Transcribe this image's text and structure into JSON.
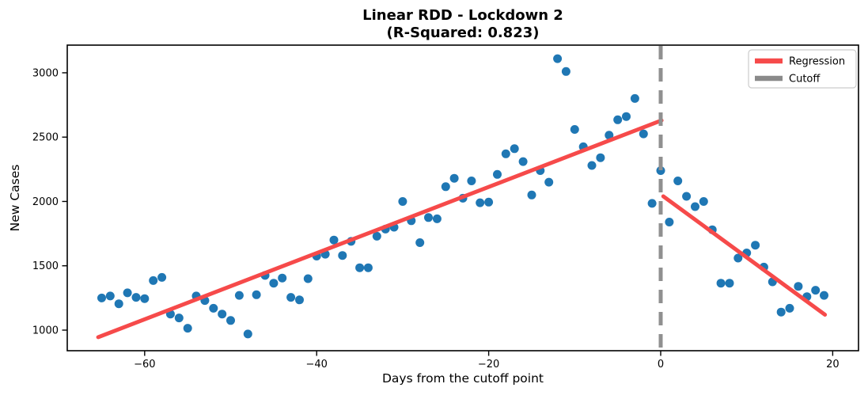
{
  "title": {
    "line1": "Linear RDD - Lockdown 2",
    "line2": "(R-Squared: 0.823)"
  },
  "chart_data": {
    "type": "scatter",
    "title": "Linear RDD - Lockdown 2 (R-Squared: 0.823)",
    "r_squared": 0.823,
    "xlabel": "Days from the cutoff point",
    "ylabel": "New Cases",
    "xlim": [
      -69,
      23
    ],
    "ylim": [
      840,
      3215
    ],
    "grid": false,
    "legend_position": "top-right",
    "xticks": {
      "values": [
        -60,
        -40,
        -20,
        0,
        20
      ],
      "labels": [
        "−60",
        "−40",
        "−20",
        "0",
        "20"
      ]
    },
    "yticks": {
      "values": [
        1000,
        1500,
        2000,
        2500,
        3000
      ],
      "labels": [
        "1000",
        "1500",
        "2000",
        "2500",
        "3000"
      ]
    },
    "legend": [
      {
        "label": "Regression",
        "color": "#f64a4a",
        "style": "solid"
      },
      {
        "label": "Cutoff",
        "color": "#8a8a8a",
        "style": "dashed"
      }
    ],
    "colors": {
      "points": "#1f77b4",
      "regression": "#f64a4a",
      "cutoff": "#909090",
      "spine": "#000000"
    },
    "series": [
      {
        "name": "observations",
        "type": "scatter",
        "color": "#1f77b4",
        "points": [
          [
            -65,
            1250
          ],
          [
            -64,
            1265
          ],
          [
            -63,
            1205
          ],
          [
            -62,
            1290
          ],
          [
            -61,
            1255
          ],
          [
            -60,
            1245
          ],
          [
            -59,
            1385
          ],
          [
            -58,
            1410
          ],
          [
            -57,
            1125
          ],
          [
            -56,
            1095
          ],
          [
            -55,
            1015
          ],
          [
            -54,
            1265
          ],
          [
            -53,
            1230
          ],
          [
            -52,
            1170
          ],
          [
            -51,
            1125
          ],
          [
            -50,
            1075
          ],
          [
            -49,
            1270
          ],
          [
            -48,
            970
          ],
          [
            -47,
            1275
          ],
          [
            -46,
            1425
          ],
          [
            -45,
            1365
          ],
          [
            -44,
            1405
          ],
          [
            -43,
            1255
          ],
          [
            -42,
            1235
          ],
          [
            -41,
            1400
          ],
          [
            -40,
            1575
          ],
          [
            -39,
            1590
          ],
          [
            -38,
            1700
          ],
          [
            -37,
            1580
          ],
          [
            -36,
            1690
          ],
          [
            -35,
            1485
          ],
          [
            -34,
            1485
          ],
          [
            -33,
            1730
          ],
          [
            -32,
            1785
          ],
          [
            -31,
            1800
          ],
          [
            -30,
            2000
          ],
          [
            -29,
            1850
          ],
          [
            -28,
            1680
          ],
          [
            -27,
            1875
          ],
          [
            -26,
            1865
          ],
          [
            -25,
            2115
          ],
          [
            -24,
            2180
          ],
          [
            -23,
            2025
          ],
          [
            -22,
            2160
          ],
          [
            -21,
            1990
          ],
          [
            -20,
            1995
          ],
          [
            -19,
            2210
          ],
          [
            -18,
            2370
          ],
          [
            -17,
            2410
          ],
          [
            -16,
            2310
          ],
          [
            -15,
            2050
          ],
          [
            -14,
            2240
          ],
          [
            -13,
            2150
          ],
          [
            -12,
            3110
          ],
          [
            -11,
            3010
          ],
          [
            -10,
            2560
          ],
          [
            -9,
            2425
          ],
          [
            -8,
            2280
          ],
          [
            -7,
            2340
          ],
          [
            -6,
            2515
          ],
          [
            -5,
            2635
          ],
          [
            -4,
            2660
          ],
          [
            -3,
            2800
          ],
          [
            -2,
            2525
          ],
          [
            -1,
            1985
          ],
          [
            0,
            2240
          ],
          [
            1,
            1840
          ],
          [
            2,
            2160
          ],
          [
            3,
            2040
          ],
          [
            4,
            1960
          ],
          [
            5,
            2000
          ],
          [
            6,
            1780
          ],
          [
            7,
            1365
          ],
          [
            8,
            1365
          ],
          [
            9,
            1560
          ],
          [
            10,
            1600
          ],
          [
            11,
            1660
          ],
          [
            12,
            1490
          ],
          [
            13,
            1375
          ],
          [
            14,
            1140
          ],
          [
            15,
            1170
          ],
          [
            16,
            1340
          ],
          [
            17,
            1260
          ],
          [
            18,
            1310
          ],
          [
            19,
            1270
          ]
        ]
      },
      {
        "name": "regression-pre-cutoff",
        "type": "line",
        "color": "#f64a4a",
        "x": [
          -65.4,
          0.1
        ],
        "y": [
          945,
          2630
        ]
      },
      {
        "name": "regression-post-cutoff",
        "type": "line",
        "color": "#f64a4a",
        "x": [
          0.3,
          19.1
        ],
        "y": [
          2040,
          1120
        ]
      },
      {
        "name": "cutoff",
        "type": "vline",
        "color": "#909090",
        "x": 0
      }
    ]
  }
}
